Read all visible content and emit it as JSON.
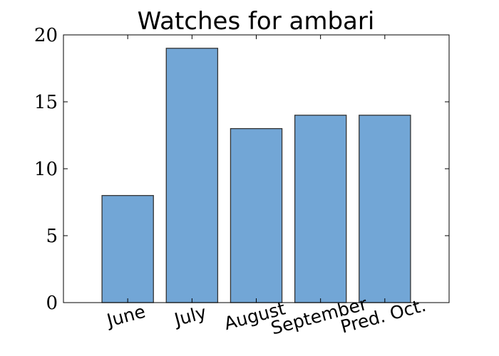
{
  "chart_data": {
    "type": "bar",
    "title": "Watches for ambari",
    "xlabel": "",
    "ylabel": "",
    "categories": [
      "June",
      "July",
      "August",
      "September",
      "Pred. Oct."
    ],
    "values": [
      8,
      19,
      13,
      14,
      14
    ],
    "ylim": [
      0,
      20
    ],
    "yticks": [
      "0",
      "5",
      "10",
      "15",
      "20"
    ],
    "grid": false,
    "bar_color": "#72a6d6",
    "bar_edge_color": "#333333"
  }
}
